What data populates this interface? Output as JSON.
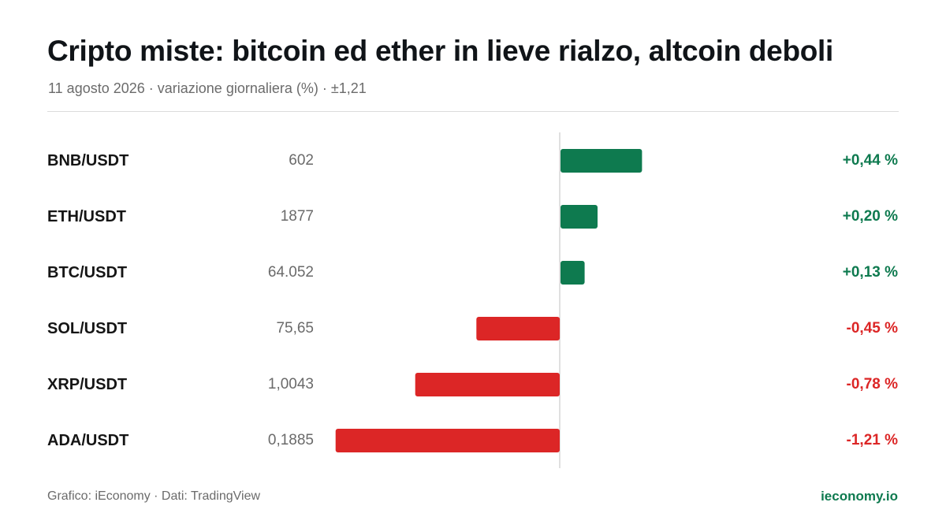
{
  "title": "Cripto miste: bitcoin ed ether in lieve rialzo, altcoin deboli",
  "subtitle": "11 agosto 2026 · variazione giornaliera (%) · ±1,21",
  "footer": {
    "source": "Grafico: iEconomy · Dati: TradingView",
    "brand": "ieconomy.io"
  },
  "colors": {
    "positive": "#0e7a4f",
    "negative": "#dc2626",
    "axis": "#d6d6d6"
  },
  "chart_data": {
    "type": "bar",
    "orientation": "horizontal",
    "categories": [
      "BNB/USDT",
      "ETH/USDT",
      "BTC/USDT",
      "SOL/USDT",
      "XRP/USDT",
      "ADA/USDT"
    ],
    "prices": [
      "602",
      "1877",
      "64.052",
      "75,65",
      "1,0043",
      "0,1885"
    ],
    "values": [
      0.44,
      0.2,
      0.13,
      -0.45,
      -0.78,
      -1.21
    ],
    "value_labels": [
      "+0,44 %",
      "+0,20 %",
      "+0,13 %",
      "-0,45 %",
      "-0,78 %",
      "-1,21 %"
    ],
    "xlim": [
      -1.21,
      1.21
    ],
    "grid": false,
    "legend": "none"
  }
}
